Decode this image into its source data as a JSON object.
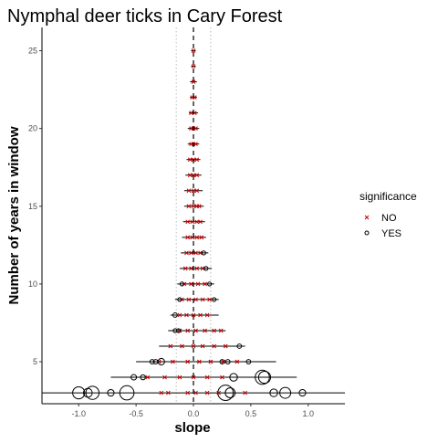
{
  "chart_data": {
    "type": "scatter",
    "title": "Nymphal deer ticks in Cary Forest",
    "xlabel": "slope",
    "ylabel": "Number of years in window",
    "xlim": [
      -1.32,
      1.32
    ],
    "ylim": [
      2.3,
      26.5
    ],
    "x_ticks": [
      -1.0,
      -0.5,
      0.0,
      0.5,
      1.0
    ],
    "x_tick_labels": [
      "-1.0",
      "-0.5",
      "0.0",
      "0.5",
      "1.0"
    ],
    "y_ticks": [
      5,
      10,
      15,
      20,
      25
    ],
    "y_tick_labels": [
      "5",
      "10",
      "15",
      "20",
      "25"
    ],
    "grid": false,
    "reference_lines": {
      "zero_dashed": 0.0,
      "dotted": [
        -0.15,
        0.15
      ]
    },
    "legend": {
      "title": "significance",
      "position": "right",
      "entries": [
        {
          "label": "NO",
          "symbol": "x",
          "color": "#cc0000"
        },
        {
          "label": "YES",
          "symbol": "circle",
          "color": "#000000"
        }
      ]
    },
    "colors": {
      "no": "#cc0000",
      "yes": "#000000"
    },
    "rows": [
      {
        "n": 3,
        "range": [
          -1.32,
          1.32
        ],
        "no": [
          -0.28,
          -0.22,
          -0.05,
          0.02,
          0.12,
          0.22,
          0.45
        ],
        "yes": [
          {
            "x": -1.0,
            "size": 0.8
          },
          {
            "x": -0.92,
            "size": 0.5
          },
          {
            "x": -0.88,
            "size": 0.9
          },
          {
            "x": -0.72,
            "size": 0.3
          },
          {
            "x": -0.58,
            "size": 1.0
          },
          {
            "x": 0.28,
            "size": 1.1
          },
          {
            "x": 0.32,
            "size": 0.6
          },
          {
            "x": 0.7,
            "size": 0.4
          },
          {
            "x": 0.8,
            "size": 0.7
          },
          {
            "x": 0.95,
            "size": 0.3
          }
        ]
      },
      {
        "n": 4,
        "range": [
          -0.72,
          0.9
        ],
        "no": [
          -0.4,
          -0.25,
          -0.12,
          0.0,
          0.12,
          0.25
        ],
        "yes": [
          {
            "x": -0.52,
            "size": 0.2
          },
          {
            "x": -0.44,
            "size": 0.15
          },
          {
            "x": 0.35,
            "size": 0.4
          },
          {
            "x": 0.6,
            "size": 1.0
          },
          {
            "x": 0.62,
            "size": 0.8
          }
        ]
      },
      {
        "n": 5,
        "range": [
          -0.5,
          0.72
        ],
        "no": [
          -0.3,
          -0.18,
          -0.05,
          0.05,
          0.15,
          0.26,
          0.38
        ],
        "yes": [
          {
            "x": -0.36,
            "size": 0.1
          },
          {
            "x": -0.33,
            "size": 0.1
          },
          {
            "x": -0.28,
            "size": 0.3
          },
          {
            "x": 0.25,
            "size": 0.1
          },
          {
            "x": 0.3,
            "size": 0.1
          },
          {
            "x": 0.48,
            "size": 0.1
          }
        ]
      },
      {
        "n": 6,
        "range": [
          -0.3,
          0.45
        ],
        "no": [
          -0.2,
          -0.1,
          0.0,
          0.08,
          0.18,
          0.28
        ],
        "yes": [
          {
            "x": 0.4,
            "size": 0.1
          }
        ]
      },
      {
        "n": 7,
        "range": [
          -0.22,
          0.28
        ],
        "no": [
          -0.12,
          -0.05,
          0.02,
          0.1,
          0.18,
          0.24
        ],
        "yes": [
          {
            "x": -0.16,
            "size": 0.05
          },
          {
            "x": -0.13,
            "size": 0.05
          }
        ]
      },
      {
        "n": 8,
        "range": [
          -0.2,
          0.22
        ],
        "no": [
          -0.12,
          -0.06,
          0.0,
          0.06,
          0.12
        ],
        "yes": [
          {
            "x": -0.16,
            "size": 0.1
          }
        ]
      },
      {
        "n": 9,
        "range": [
          -0.16,
          0.22
        ],
        "no": [
          -0.1,
          -0.04,
          0.02,
          0.08,
          0.14
        ],
        "yes": [
          {
            "x": -0.12,
            "size": 0.05
          },
          {
            "x": 0.18,
            "size": 0.05
          }
        ]
      },
      {
        "n": 10,
        "range": [
          -0.14,
          0.18
        ],
        "no": [
          -0.08,
          -0.02,
          0.04,
          0.1
        ],
        "yes": [
          {
            "x": -0.1,
            "size": 0.05
          },
          {
            "x": 0.14,
            "size": 0.05
          }
        ]
      },
      {
        "n": 11,
        "range": [
          -0.12,
          0.16
        ],
        "no": [
          -0.07,
          -0.02,
          0.03,
          0.08
        ],
        "yes": [
          {
            "x": 0.11,
            "size": 0.05
          }
        ]
      },
      {
        "n": 12,
        "range": [
          -0.11,
          0.13
        ],
        "no": [
          -0.06,
          -0.02,
          0.02,
          0.06
        ],
        "yes": [
          {
            "x": 0.09,
            "size": 0.05
          }
        ]
      },
      {
        "n": 13,
        "range": [
          -0.1,
          0.11
        ],
        "no": [
          -0.05,
          -0.01,
          0.03,
          0.07
        ],
        "yes": []
      },
      {
        "n": 14,
        "range": [
          -0.09,
          0.1
        ],
        "no": [
          -0.05,
          -0.01,
          0.03,
          0.06
        ],
        "yes": []
      },
      {
        "n": 15,
        "range": [
          -0.08,
          0.09
        ],
        "no": [
          -0.04,
          0.0,
          0.03,
          0.05
        ],
        "yes": []
      },
      {
        "n": 16,
        "range": [
          -0.08,
          0.08
        ],
        "no": [
          -0.04,
          0.0,
          0.03
        ],
        "yes": []
      },
      {
        "n": 17,
        "range": [
          -0.07,
          0.07
        ],
        "no": [
          -0.03,
          0.0,
          0.03
        ],
        "yes": []
      },
      {
        "n": 18,
        "range": [
          -0.06,
          0.06
        ],
        "no": [
          -0.03,
          0.0,
          0.03
        ],
        "yes": []
      },
      {
        "n": 19,
        "range": [
          -0.05,
          0.05
        ],
        "no": [
          -0.02,
          0.0,
          0.02
        ],
        "yes": []
      },
      {
        "n": 20,
        "range": [
          -0.05,
          0.05
        ],
        "no": [
          -0.02,
          0.0,
          0.02
        ],
        "yes": []
      },
      {
        "n": 21,
        "range": [
          -0.04,
          0.04
        ],
        "no": [
          -0.02,
          0.01
        ],
        "yes": []
      },
      {
        "n": 22,
        "range": [
          -0.03,
          0.03
        ],
        "no": [
          -0.01,
          0.01
        ],
        "yes": []
      },
      {
        "n": 23,
        "range": [
          -0.03,
          0.03
        ],
        "no": [
          0.0
        ],
        "yes": []
      },
      {
        "n": 24,
        "range": [
          -0.02,
          0.02
        ],
        "no": [
          0.0
        ],
        "yes": []
      },
      {
        "n": 25,
        "range": [
          -0.02,
          0.02
        ],
        "no": [
          0.0
        ],
        "yes": []
      }
    ]
  }
}
